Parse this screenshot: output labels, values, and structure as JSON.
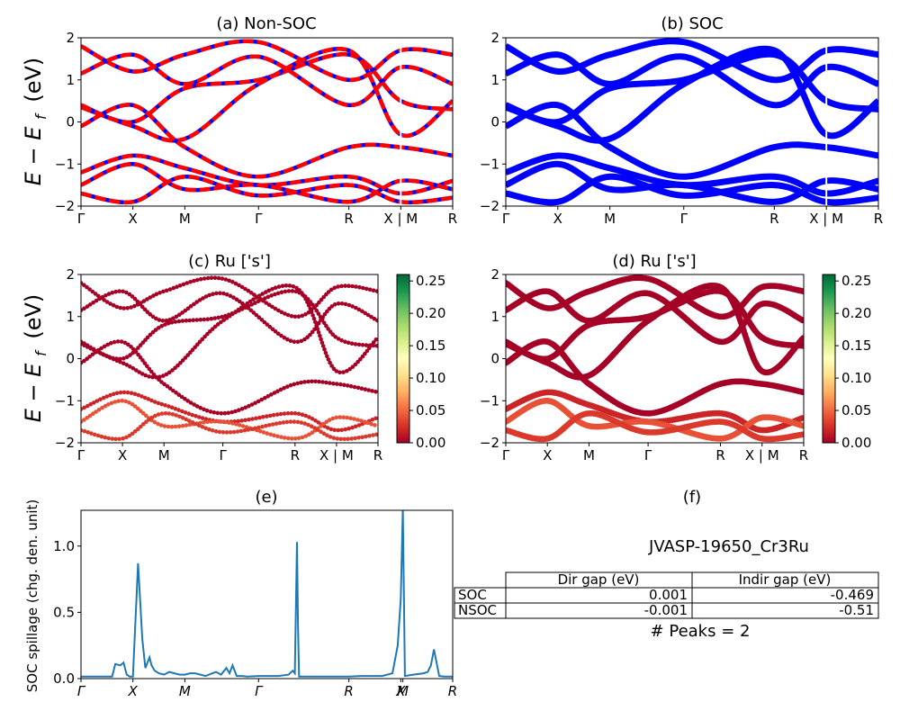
{
  "figure_id": "JVASP-19650_Cr3Ru",
  "band_axis_ylabel": "E − E",
  "band_axis_ylabel_sub": "f",
  "band_axis_ylabel_unit": "(eV)",
  "colors": {
    "blue": "#0000ff",
    "red": "#ff0000",
    "spillage": "#1f77b4",
    "cmap_low": "#a50026",
    "cmap_mid": "#ffffbf",
    "cmap_high": "#006837"
  },
  "panels": {
    "a": {
      "title": "(a) Non-SOC"
    },
    "b": {
      "title": "(b) SOC"
    },
    "c": {
      "title": "(c)  Ru ['s']"
    },
    "d": {
      "title": "(d) Ru ['s']"
    },
    "e": {
      "title": "(e)",
      "ylabel": "SOC spillage (chg. den. unit)"
    },
    "f": {
      "title": "(f)"
    }
  },
  "band_ticks": [
    "Γ",
    "X",
    "M",
    "Γ",
    "R",
    "X | M",
    "R"
  ],
  "spillage_ticks": [
    "Γ",
    "X",
    "M",
    "Γ",
    "R",
    "X",
    "M",
    "R"
  ],
  "energy_ticks": [
    "2",
    "1",
    "0",
    "−1",
    "−2"
  ],
  "colorbar_ticks": [
    "0.25",
    "0.20",
    "0.15",
    "0.10",
    "0.05",
    "0.00"
  ],
  "spillage_yticks": [
    "1.0",
    "0.5",
    "0.0"
  ],
  "table": {
    "title": "JVASP-19650_Cr3Ru",
    "columns": [
      "Dir gap (eV)",
      "Indir gap (eV)"
    ],
    "rows": [
      {
        "label": "SOC",
        "dir": "0.001",
        "indir": "-0.469"
      },
      {
        "label": "NSOC",
        "dir": "-0.001",
        "indir": "-0.51"
      }
    ],
    "peaks": "# Peaks = 2"
  },
  "chart_data": [
    {
      "type": "line",
      "panel": "a",
      "title": "(a) Non-SOC",
      "ylabel": "E − E_f (eV)",
      "ylim": [
        -2,
        2
      ],
      "xticks": [
        "Γ",
        "X",
        "M",
        "Γ",
        "R",
        "X | M",
        "R"
      ],
      "x_tick_pos": [
        0,
        0.5,
        1.0,
        1.71,
        2.58,
        3.08,
        3.58
      ],
      "series_style": "red line dashed over blue line",
      "series": [
        {
          "x": [
            0,
            0.5,
            1.0,
            1.71,
            2.58,
            3.08,
            3.58
          ],
          "values": [
            1.8,
            1.2,
            1.6,
            1.9,
            1.0,
            1.7,
            1.6
          ]
        },
        {
          "x": [
            0,
            0.5,
            1.0,
            1.71,
            2.58,
            3.08,
            3.58
          ],
          "values": [
            1.15,
            1.6,
            0.9,
            1.55,
            0.4,
            1.3,
            0.9
          ]
        },
        {
          "x": [
            0,
            0.5,
            1.0,
            1.71,
            2.58,
            3.08,
            3.58
          ],
          "values": [
            0.4,
            0.0,
            0.8,
            1.0,
            1.6,
            0.5,
            0.3
          ]
        },
        {
          "x": [
            0,
            0.5,
            1.0,
            1.71,
            2.58,
            3.08,
            3.58
          ],
          "values": [
            0.35,
            -0.1,
            -0.4,
            0.9,
            1.7,
            -0.3,
            0.5
          ]
        },
        {
          "x": [
            0,
            0.5,
            1.0,
            1.71,
            2.58,
            3.08,
            3.58
          ],
          "values": [
            -0.1,
            0.4,
            -0.6,
            -1.3,
            -0.6,
            -0.6,
            -0.8
          ]
        },
        {
          "x": [
            0,
            0.5,
            1.0,
            1.71,
            2.58,
            3.08,
            3.58
          ],
          "values": [
            -1.2,
            -0.8,
            -1.1,
            -1.5,
            -1.3,
            -1.7,
            -1.4
          ]
        },
        {
          "x": [
            0,
            0.5,
            1.0,
            1.71,
            2.58,
            3.08,
            3.58
          ],
          "values": [
            -1.5,
            -1.0,
            -1.6,
            -1.5,
            -1.9,
            -1.4,
            -1.6
          ]
        },
        {
          "x": [
            0,
            0.5,
            1.0,
            1.71,
            2.58,
            3.08,
            3.58
          ],
          "values": [
            -1.7,
            -1.9,
            -1.3,
            -1.75,
            -1.5,
            -1.9,
            -1.8
          ]
        }
      ]
    },
    {
      "type": "line",
      "panel": "b",
      "title": "(b) SOC",
      "ylabel": "",
      "ylim": [
        -2,
        2
      ],
      "xticks": [
        "Γ",
        "X",
        "M",
        "Γ",
        "R",
        "X | M",
        "R"
      ],
      "x_tick_pos": [
        0,
        0.5,
        1.0,
        1.71,
        2.58,
        3.08,
        3.58
      ],
      "series_style": "blue line",
      "series": [
        {
          "x": [
            0,
            0.5,
            1.0,
            1.71,
            2.58,
            3.08,
            3.58
          ],
          "values": [
            1.8,
            1.2,
            1.6,
            1.9,
            1.0,
            1.7,
            1.6
          ]
        },
        {
          "x": [
            0,
            0.5,
            1.0,
            1.71,
            2.58,
            3.08,
            3.58
          ],
          "values": [
            1.15,
            1.6,
            0.9,
            1.55,
            0.4,
            1.3,
            0.9
          ]
        },
        {
          "x": [
            0,
            0.5,
            1.0,
            1.71,
            2.58,
            3.08,
            3.58
          ],
          "values": [
            0.4,
            0.0,
            0.8,
            1.0,
            1.6,
            0.5,
            0.3
          ]
        },
        {
          "x": [
            0,
            0.5,
            1.0,
            1.71,
            2.58,
            3.08,
            3.58
          ],
          "values": [
            0.35,
            -0.1,
            -0.4,
            0.9,
            1.7,
            -0.3,
            0.5
          ]
        },
        {
          "x": [
            0,
            0.5,
            1.0,
            1.71,
            2.58,
            3.08,
            3.58
          ],
          "values": [
            -0.1,
            0.4,
            -0.6,
            -1.3,
            -0.6,
            -0.6,
            -0.8
          ]
        },
        {
          "x": [
            0,
            0.5,
            1.0,
            1.71,
            2.58,
            3.08,
            3.58
          ],
          "values": [
            -1.2,
            -0.8,
            -1.1,
            -1.5,
            -1.3,
            -1.7,
            -1.4
          ]
        },
        {
          "x": [
            0,
            0.5,
            1.0,
            1.71,
            2.58,
            3.08,
            3.58
          ],
          "values": [
            -1.5,
            -1.0,
            -1.6,
            -1.5,
            -1.9,
            -1.4,
            -1.6
          ]
        },
        {
          "x": [
            0,
            0.5,
            1.0,
            1.71,
            2.58,
            3.08,
            3.58
          ],
          "values": [
            -1.7,
            -1.9,
            -1.3,
            -1.75,
            -1.5,
            -1.9,
            -1.8
          ]
        }
      ]
    },
    {
      "type": "scatter",
      "panel": "c",
      "title": "(c)  Ru ['s']",
      "ylabel": "E − E_f (eV)",
      "ylim": [
        -2,
        2
      ],
      "colorbar_range": [
        0.0,
        0.26
      ],
      "xticks": [
        "Γ",
        "X",
        "M",
        "Γ",
        "R",
        "X | M",
        "R"
      ],
      "x_tick_pos": [
        0,
        0.5,
        1.0,
        1.71,
        2.58,
        3.08,
        3.58
      ],
      "series": [
        {
          "x": [
            0,
            0.5,
            1.0,
            1.71,
            2.58,
            3.08,
            3.58
          ],
          "values": [
            1.8,
            1.2,
            1.6,
            1.9,
            1.0,
            1.7,
            1.6
          ],
          "weight": 0.0
        },
        {
          "x": [
            0,
            0.5,
            1.0,
            1.71,
            2.58,
            3.08,
            3.58
          ],
          "values": [
            1.15,
            1.6,
            0.9,
            1.55,
            0.4,
            1.3,
            0.9
          ],
          "weight": 0.0
        },
        {
          "x": [
            0,
            0.5,
            1.0,
            1.71,
            2.58,
            3.08,
            3.58
          ],
          "values": [
            0.4,
            0.0,
            0.8,
            1.0,
            1.6,
            0.5,
            0.3
          ],
          "weight": 0.0
        },
        {
          "x": [
            0,
            0.5,
            1.0,
            1.71,
            2.58,
            3.08,
            3.58
          ],
          "values": [
            0.35,
            -0.1,
            -0.4,
            0.9,
            1.7,
            -0.3,
            0.5
          ],
          "weight": 0.0
        },
        {
          "x": [
            0,
            0.5,
            1.0,
            1.71,
            2.58,
            3.08,
            3.58
          ],
          "values": [
            -0.1,
            0.4,
            -0.6,
            -1.3,
            -0.6,
            -0.6,
            -0.8
          ],
          "weight": 0.0
        },
        {
          "x": [
            0,
            0.5,
            1.0,
            1.71,
            2.58,
            3.08,
            3.58
          ],
          "values": [
            -1.2,
            -0.8,
            -1.1,
            -1.5,
            -1.3,
            -1.7,
            -1.4
          ],
          "weight": 0.02
        },
        {
          "x": [
            0,
            0.5,
            1.0,
            1.71,
            2.58,
            3.08,
            3.58
          ],
          "values": [
            -1.5,
            -1.0,
            -1.6,
            -1.5,
            -1.9,
            -1.4,
            -1.6
          ],
          "weight": 0.04
        },
        {
          "x": [
            0,
            0.5,
            1.0,
            1.71,
            2.58,
            3.08,
            3.58
          ],
          "values": [
            -1.7,
            -1.9,
            -1.3,
            -1.75,
            -1.5,
            -1.9,
            -1.8
          ],
          "weight": 0.03
        }
      ]
    },
    {
      "type": "scatter",
      "panel": "d",
      "title": "(d) Ru ['s']",
      "ylabel": "",
      "ylim": [
        -2,
        2
      ],
      "colorbar_range": [
        0.0,
        0.26
      ],
      "xticks": [
        "Γ",
        "X",
        "M",
        "Γ",
        "R",
        "X | M",
        "R"
      ],
      "x_tick_pos": [
        0,
        0.5,
        1.0,
        1.71,
        2.58,
        3.08,
        3.58
      ],
      "series": [
        {
          "x": [
            0,
            0.5,
            1.0,
            1.71,
            2.58,
            3.08,
            3.58
          ],
          "values": [
            1.8,
            1.2,
            1.6,
            1.9,
            1.0,
            1.7,
            1.6
          ],
          "weight": 0.0
        },
        {
          "x": [
            0,
            0.5,
            1.0,
            1.71,
            2.58,
            3.08,
            3.58
          ],
          "values": [
            1.15,
            1.6,
            0.9,
            1.55,
            0.4,
            1.3,
            0.9
          ],
          "weight": 0.0
        },
        {
          "x": [
            0,
            0.5,
            1.0,
            1.71,
            2.58,
            3.08,
            3.58
          ],
          "values": [
            0.4,
            0.0,
            0.8,
            1.0,
            1.6,
            0.5,
            0.3
          ],
          "weight": 0.0
        },
        {
          "x": [
            0,
            0.5,
            1.0,
            1.71,
            2.58,
            3.08,
            3.58
          ],
          "values": [
            0.35,
            -0.1,
            -0.4,
            0.9,
            1.7,
            -0.3,
            0.5
          ],
          "weight": 0.0
        },
        {
          "x": [
            0,
            0.5,
            1.0,
            1.71,
            2.58,
            3.08,
            3.58
          ],
          "values": [
            -0.1,
            0.4,
            -0.6,
            -1.3,
            -0.6,
            -0.6,
            -0.8
          ],
          "weight": 0.0
        },
        {
          "x": [
            0,
            0.5,
            1.0,
            1.71,
            2.58,
            3.08,
            3.58
          ],
          "values": [
            -1.2,
            -0.8,
            -1.1,
            -1.5,
            -1.3,
            -1.7,
            -1.4
          ],
          "weight": 0.02
        },
        {
          "x": [
            0,
            0.5,
            1.0,
            1.71,
            2.58,
            3.08,
            3.58
          ],
          "values": [
            -1.5,
            -1.0,
            -1.6,
            -1.5,
            -1.9,
            -1.4,
            -1.6
          ],
          "weight": 0.04
        },
        {
          "x": [
            0,
            0.5,
            1.0,
            1.71,
            2.58,
            3.08,
            3.58
          ],
          "values": [
            -1.7,
            -1.9,
            -1.3,
            -1.75,
            -1.5,
            -1.9,
            -1.8
          ],
          "weight": 0.03
        }
      ]
    },
    {
      "type": "line",
      "panel": "e",
      "title": "(e)",
      "ylabel": "SOC spillage (chg. den. unit)",
      "ylim": [
        0,
        1.27
      ],
      "xticks": [
        "Γ",
        "X",
        "M",
        "Γ",
        "R",
        "X",
        "M",
        "R"
      ],
      "x_tick_pos": [
        0,
        0.5,
        1.0,
        1.71,
        2.58,
        3.08,
        3.1,
        3.58
      ],
      "series": [
        {
          "x": [
            0,
            0.3,
            0.33,
            0.38,
            0.41,
            0.44,
            0.47,
            0.5,
            0.55,
            0.59,
            0.62,
            0.66,
            0.68,
            0.71,
            0.75,
            0.8,
            0.85,
            0.9,
            0.95,
            1.0,
            1.05,
            1.1,
            1.2,
            1.3,
            1.35,
            1.4,
            1.43,
            1.46,
            1.5,
            1.55,
            1.6,
            1.71,
            1.9,
            2.0,
            2.04,
            2.06,
            2.08,
            2.09,
            2.1,
            2.13,
            2.2,
            2.58,
            2.7,
            2.9,
            3.0,
            3.05,
            3.08,
            3.1,
            3.12,
            3.2,
            3.3,
            3.34,
            3.37,
            3.4,
            3.45,
            3.5,
            3.58
          ],
          "values": [
            0.015,
            0.015,
            0.11,
            0.1,
            0.12,
            0.03,
            0.015,
            0.015,
            0.87,
            0.3,
            0.08,
            0.16,
            0.1,
            0.06,
            0.04,
            0.03,
            0.05,
            0.04,
            0.03,
            0.03,
            0.04,
            0.04,
            0.02,
            0.05,
            0.03,
            0.08,
            0.04,
            0.1,
            0.02,
            0.02,
            0.015,
            0.02,
            0.02,
            0.03,
            0.06,
            0.04,
            1.03,
            0.4,
            0.015,
            0.015,
            0.015,
            0.015,
            0.02,
            0.02,
            0.04,
            0.25,
            0.6,
            1.28,
            0.02,
            0.03,
            0.04,
            0.05,
            0.1,
            0.22,
            0.02,
            0.015,
            0.015
          ]
        }
      ]
    }
  ]
}
